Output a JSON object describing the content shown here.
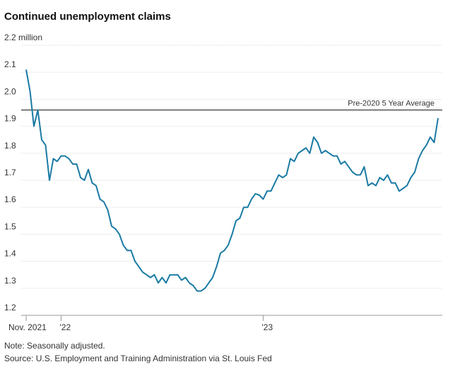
{
  "chart_data": {
    "type": "line",
    "title": "Continued unemployment claims",
    "note": "Note: Seasonally adjusted.",
    "source": "Source: U.S. Employment and Training Administration via St. Louis Fed",
    "annotation": {
      "label": "Pre-2020 5 Year Average",
      "value": 1.96
    },
    "categories": [
      "Nov. 2021",
      null,
      null,
      null,
      null,
      null,
      null,
      null,
      null,
      "'22",
      null,
      null,
      null,
      null,
      null,
      null,
      null,
      null,
      null,
      null,
      null,
      null,
      null,
      null,
      null,
      null,
      null,
      null,
      null,
      null,
      null,
      null,
      null,
      null,
      null,
      null,
      null,
      null,
      null,
      null,
      null,
      null,
      null,
      null,
      null,
      null,
      null,
      null,
      null,
      null,
      null,
      null,
      null,
      null,
      null,
      null,
      null,
      null,
      null,
      null,
      null,
      "'23",
      null,
      null,
      null,
      null,
      null,
      null,
      null,
      null,
      null,
      null,
      null,
      null,
      null,
      null,
      null,
      null,
      null,
      null,
      null,
      null,
      null,
      null,
      null,
      null,
      null,
      null,
      null,
      null,
      null,
      null,
      null,
      null,
      null,
      null,
      null,
      null,
      null,
      null,
      null,
      null,
      null,
      null,
      null,
      null,
      null
    ],
    "series": [
      {
        "name": "Continued claims",
        "color": "#1a7aa3",
        "values": [
          2.11,
          2.03,
          1.9,
          1.96,
          1.85,
          1.83,
          1.7,
          1.78,
          1.77,
          1.79,
          1.79,
          1.78,
          1.76,
          1.76,
          1.71,
          1.7,
          1.74,
          1.69,
          1.68,
          1.63,
          1.62,
          1.59,
          1.53,
          1.52,
          1.5,
          1.46,
          1.44,
          1.44,
          1.4,
          1.38,
          1.36,
          1.35,
          1.34,
          1.35,
          1.32,
          1.34,
          1.32,
          1.35,
          1.35,
          1.35,
          1.33,
          1.34,
          1.32,
          1.31,
          1.29,
          1.29,
          1.3,
          1.32,
          1.34,
          1.38,
          1.43,
          1.44,
          1.46,
          1.5,
          1.55,
          1.56,
          1.6,
          1.6,
          1.63,
          1.65,
          1.645,
          1.63,
          1.66,
          1.66,
          1.69,
          1.72,
          1.71,
          1.72,
          1.78,
          1.77,
          1.8,
          1.81,
          1.82,
          1.8,
          1.86,
          1.84,
          1.8,
          1.81,
          1.8,
          1.79,
          1.79,
          1.76,
          1.77,
          1.75,
          1.73,
          1.72,
          1.72,
          1.75,
          1.68,
          1.69,
          1.68,
          1.71,
          1.7,
          1.72,
          1.69,
          1.69,
          1.66,
          1.67,
          1.68,
          1.71,
          1.73,
          1.78,
          1.81,
          1.83,
          1.86,
          1.84,
          1.93
        ]
      }
    ],
    "ylim": [
      1.2,
      2.2
    ],
    "yticks": [
      {
        "value": 1.2,
        "label": "1.2"
      },
      1.3,
      1.4,
      1.5,
      1.6,
      1.7,
      1.8,
      1.9,
      {
        "value": 2.0,
        "label": "2.0"
      },
      2.1,
      {
        "value": 2.2,
        "label": "2.2 million"
      }
    ],
    "grid": true
  }
}
